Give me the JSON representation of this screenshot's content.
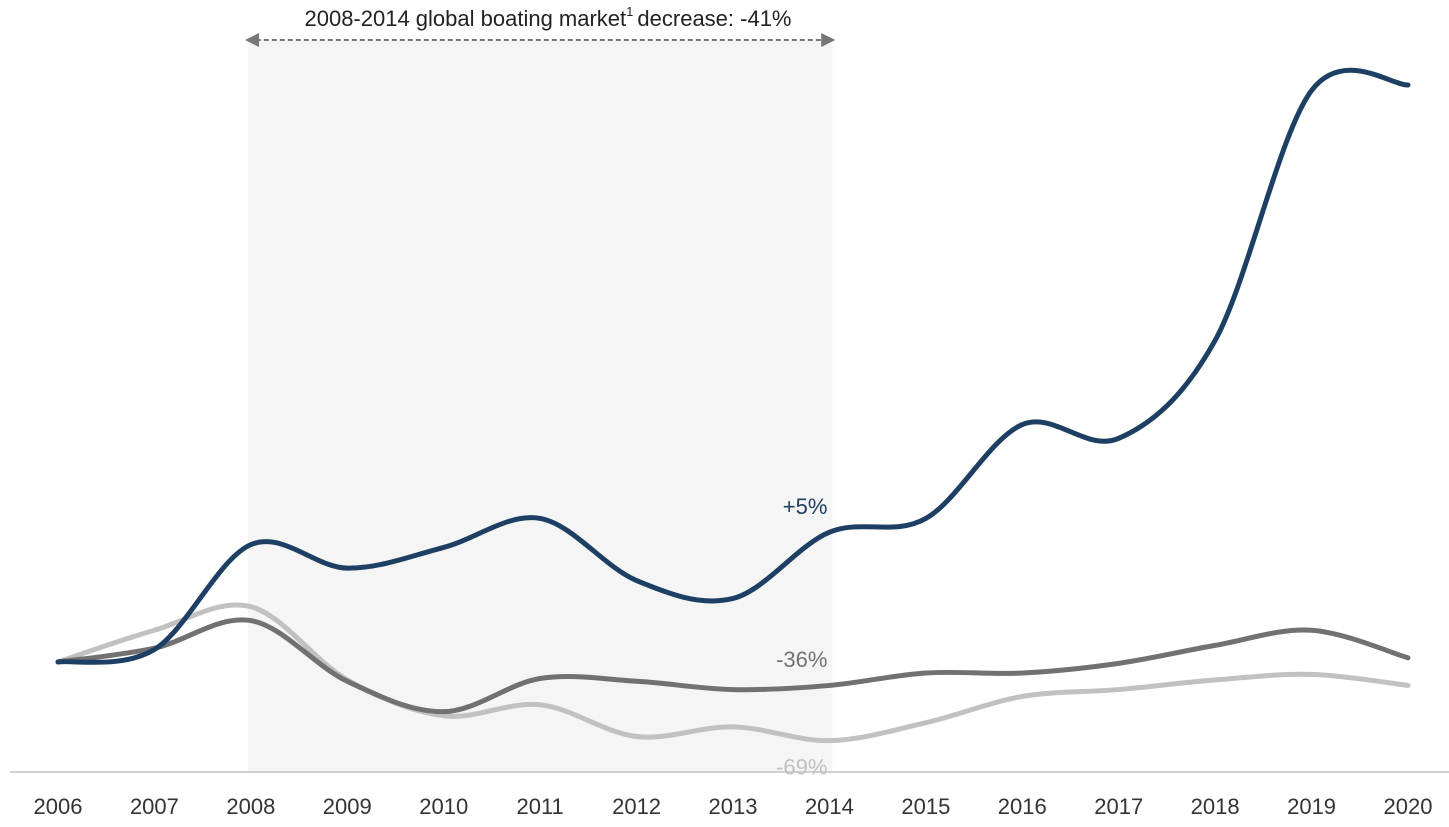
{
  "chart_data": {
    "type": "line",
    "title": "2008-2014 global boating market",
    "title_superscript": "1",
    "title_suffix": "decrease: -41%",
    "categories": [
      "2006",
      "2007",
      "2008",
      "2009",
      "2010",
      "2011",
      "2012",
      "2013",
      "2014",
      "2015",
      "2016",
      "2017",
      "2018",
      "2019",
      "2020"
    ],
    "series": [
      {
        "color": "#1d3f63",
        "values": [
          100,
          109,
          185,
          168,
          183,
          204,
          159,
          146,
          194,
          204,
          272,
          262,
          333,
          514,
          518
        ]
      },
      {
        "color": "#737071",
        "values": [
          100,
          110,
          130,
          86,
          64,
          88,
          86,
          80,
          83,
          92,
          92,
          99,
          112,
          123,
          103
        ]
      },
      {
        "color": "#c1c1c1",
        "values": [
          100,
          123,
          140,
          87,
          61,
          69,
          46,
          53,
          43,
          56,
          75,
          80,
          87,
          91,
          83
        ]
      }
    ],
    "annotations": [
      "+5%",
      "-36%",
      "-69%"
    ],
    "highlight_range": [
      "2008",
      "2014"
    ],
    "ylim": [
      0,
      560
    ]
  }
}
